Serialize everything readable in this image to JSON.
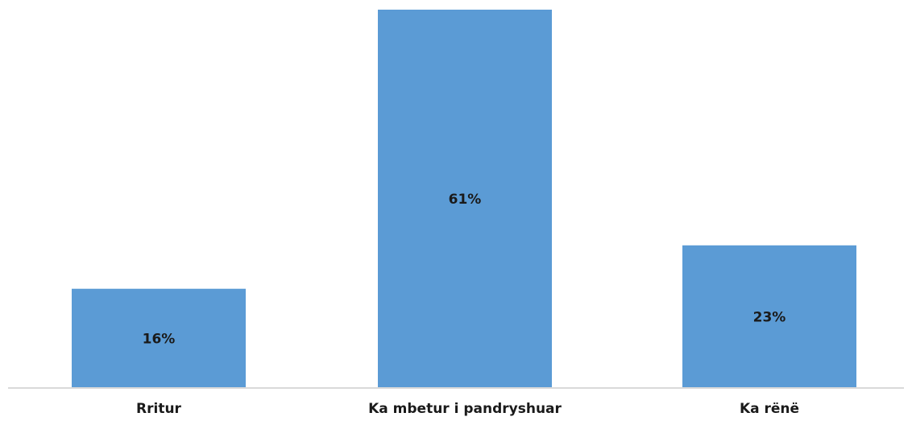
{
  "chart_data": {
    "type": "bar",
    "categories": [
      "Rritur",
      "Ka mbetur i pandryshuar",
      "Ka rënë"
    ],
    "values": [
      16,
      61,
      23
    ],
    "data_labels": [
      "16%",
      "61%",
      "23%"
    ],
    "unit": "%",
    "ylim": [
      0,
      61
    ],
    "grid": false,
    "legend": "none",
    "colors": {
      "bar": "#5b9bd5",
      "axis": "#d9d9d9",
      "text": "#1a1a1a"
    }
  }
}
